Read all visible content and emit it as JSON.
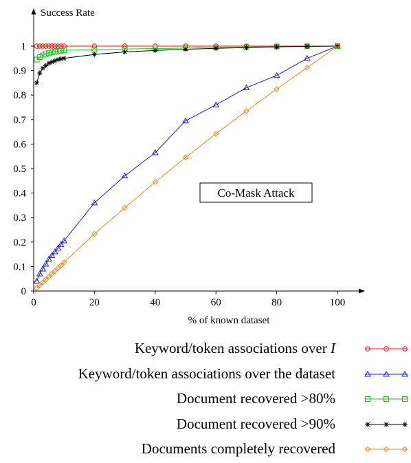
{
  "chart_data": {
    "type": "line",
    "title": "",
    "ylabel": "Success Rate",
    "xlabel": "% of known dataset",
    "annotation": "Co-Mask Attack",
    "xlim": [
      0,
      100
    ],
    "ylim": [
      0,
      1
    ],
    "x_ticks": [
      0,
      20,
      40,
      60,
      80,
      100
    ],
    "y_ticks": [
      0,
      0.1,
      0.2,
      0.3,
      0.4,
      0.5,
      0.6,
      0.7,
      0.8,
      0.9,
      1
    ],
    "y_tick_labels": [
      "0",
      "0.1",
      "0.2",
      "0.3",
      "0.4",
      "0.5",
      "0.6",
      "0.7",
      "0.8",
      "0.9",
      "1"
    ],
    "grid": false,
    "legend_position": "bottom",
    "series": [
      {
        "name": "Keyword/token associations over I",
        "name_prefix": "Keyword/token associations over ",
        "name_var": "I",
        "color": "#e8131b",
        "marker": "circle",
        "x": [
          1,
          2,
          3,
          4,
          5,
          6,
          7,
          8,
          9,
          10,
          20,
          30,
          40,
          50,
          60,
          70,
          80,
          90,
          100
        ],
        "y": [
          1,
          1,
          1,
          1,
          1,
          1,
          1,
          1,
          1,
          1,
          1,
          1,
          1,
          1,
          1,
          1,
          1,
          1,
          1
        ]
      },
      {
        "name": "Keyword/token associations over the dataset",
        "color": "#1a1adb",
        "marker": "triangle",
        "x": [
          1,
          2,
          3,
          4,
          5,
          6,
          7,
          8,
          9,
          10,
          20,
          30,
          40,
          50,
          60,
          70,
          80,
          90,
          100
        ],
        "y": [
          0.04,
          0.07,
          0.09,
          0.11,
          0.13,
          0.145,
          0.16,
          0.175,
          0.19,
          0.205,
          0.36,
          0.47,
          0.565,
          0.695,
          0.76,
          0.83,
          0.88,
          0.95,
          1
        ]
      },
      {
        "name": "Document recovered >80%",
        "color": "#17c617",
        "marker": "square",
        "x": [
          1,
          2,
          3,
          4,
          5,
          6,
          7,
          8,
          9,
          10,
          20,
          30,
          40,
          50,
          60,
          70,
          80,
          90,
          100
        ],
        "y": [
          0.945,
          0.955,
          0.962,
          0.967,
          0.971,
          0.974,
          0.977,
          0.979,
          0.981,
          0.983,
          0.985,
          0.988,
          0.99,
          0.992,
          0.994,
          0.996,
          0.998,
          0.999,
          1
        ]
      },
      {
        "name": "Document recovered >90%",
        "color": "#000000",
        "marker": "star",
        "x": [
          1,
          2,
          3,
          4,
          5,
          6,
          7,
          8,
          9,
          10,
          20,
          30,
          40,
          50,
          60,
          70,
          80,
          90,
          100
        ],
        "y": [
          0.85,
          0.89,
          0.91,
          0.92,
          0.93,
          0.935,
          0.94,
          0.945,
          0.948,
          0.95,
          0.966,
          0.976,
          0.982,
          0.987,
          0.991,
          0.994,
          0.997,
          0.999,
          1
        ]
      },
      {
        "name": "Documents completely recovered",
        "color": "#f0891a",
        "marker": "diamond",
        "x": [
          1,
          2,
          3,
          4,
          5,
          6,
          7,
          8,
          9,
          10,
          20,
          30,
          40,
          50,
          60,
          70,
          80,
          90,
          100
        ],
        "y": [
          0.012,
          0.024,
          0.035,
          0.047,
          0.058,
          0.07,
          0.082,
          0.094,
          0.105,
          0.117,
          0.233,
          0.34,
          0.445,
          0.545,
          0.642,
          0.735,
          0.825,
          0.912,
          1
        ]
      }
    ]
  }
}
